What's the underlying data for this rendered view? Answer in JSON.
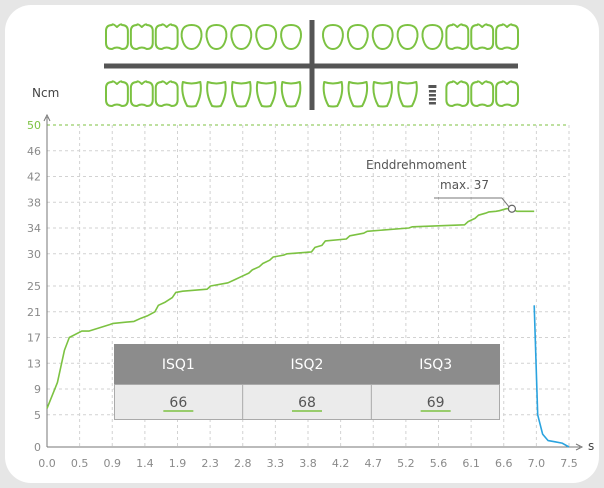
{
  "colors": {
    "curve_green": "#7cc242",
    "curve_blue": "#2aa3df",
    "grid": "#d2d2d2",
    "tooth": "#7cc242",
    "implant": "#555555",
    "isq_header": "#8c8c8c",
    "isq_body": "#ebebeb"
  },
  "dental_chart": {
    "upper_left_teeth": 8,
    "upper_right_teeth": 8,
    "lower_left_teeth": 8,
    "lower_right_teeth": 8,
    "implant_position": "lower-right-5"
  },
  "chart_data": {
    "type": "line",
    "ylabel": "Ncm",
    "xlabel": "s",
    "ylim": [
      0,
      50
    ],
    "yticks": [
      "0",
      "5",
      "9",
      "13",
      "17",
      "21",
      "25",
      "30",
      "34",
      "38",
      "42",
      "46",
      "50"
    ],
    "xlim": [
      0.0,
      7.5
    ],
    "xticks": [
      "0.0",
      "0.5",
      "0.9",
      "1.4",
      "1.9",
      "2.3",
      "2.8",
      "3.3",
      "3.8",
      "4.2",
      "4.7",
      "5.2",
      "5.6",
      "6.1",
      "6.6",
      "7.0",
      "7.5"
    ],
    "grid": "dashed",
    "threshold_line": 50,
    "series": [
      {
        "color": "green",
        "x": [
          0.0,
          0.15,
          0.25,
          0.32,
          0.5,
          0.6,
          0.9,
          0.95,
          1.25,
          1.35,
          1.45,
          1.55,
          1.6,
          1.7,
          1.8,
          1.85,
          1.95,
          2.3,
          2.35,
          2.6,
          2.7,
          2.8,
          2.9,
          2.95,
          3.05,
          3.1,
          3.2,
          3.25,
          3.4,
          3.45,
          3.8,
          3.85,
          3.95,
          4.0,
          4.3,
          4.35,
          4.55,
          4.6,
          5.2,
          5.25,
          6.0,
          6.05,
          6.15,
          6.2,
          6.3,
          6.35,
          6.45,
          6.5,
          6.6,
          6.68,
          6.75,
          7.0
        ],
        "y": [
          6,
          10,
          15,
          17,
          18,
          18,
          19,
          19.2,
          19.5,
          20,
          20.4,
          21,
          22,
          22.5,
          23.2,
          24,
          24.2,
          24.5,
          25,
          25.5,
          26,
          26.5,
          27,
          27.5,
          28,
          28.5,
          29,
          29.5,
          29.8,
          30,
          30.3,
          31,
          31.3,
          32,
          32.3,
          32.8,
          33.2,
          33.5,
          34,
          34.2,
          34.5,
          35,
          35.5,
          36,
          36.3,
          36.5,
          36.6,
          36.7,
          37,
          37,
          36.6,
          36.6
        ]
      },
      {
        "color": "blue",
        "x": [
          7.0,
          7.05,
          7.12,
          7.2,
          7.3,
          7.4,
          7.5
        ],
        "y": [
          22,
          5,
          2,
          1,
          0.8,
          0.6,
          0
        ]
      }
    ],
    "annotation": {
      "line1": "Enddrehmoment",
      "line2": "max. 37",
      "x": 6.68,
      "y": 37
    },
    "isq_table": {
      "headers": [
        "ISQ1",
        "ISQ2",
        "ISQ3"
      ],
      "values": [
        "66",
        "68",
        "69"
      ]
    }
  }
}
